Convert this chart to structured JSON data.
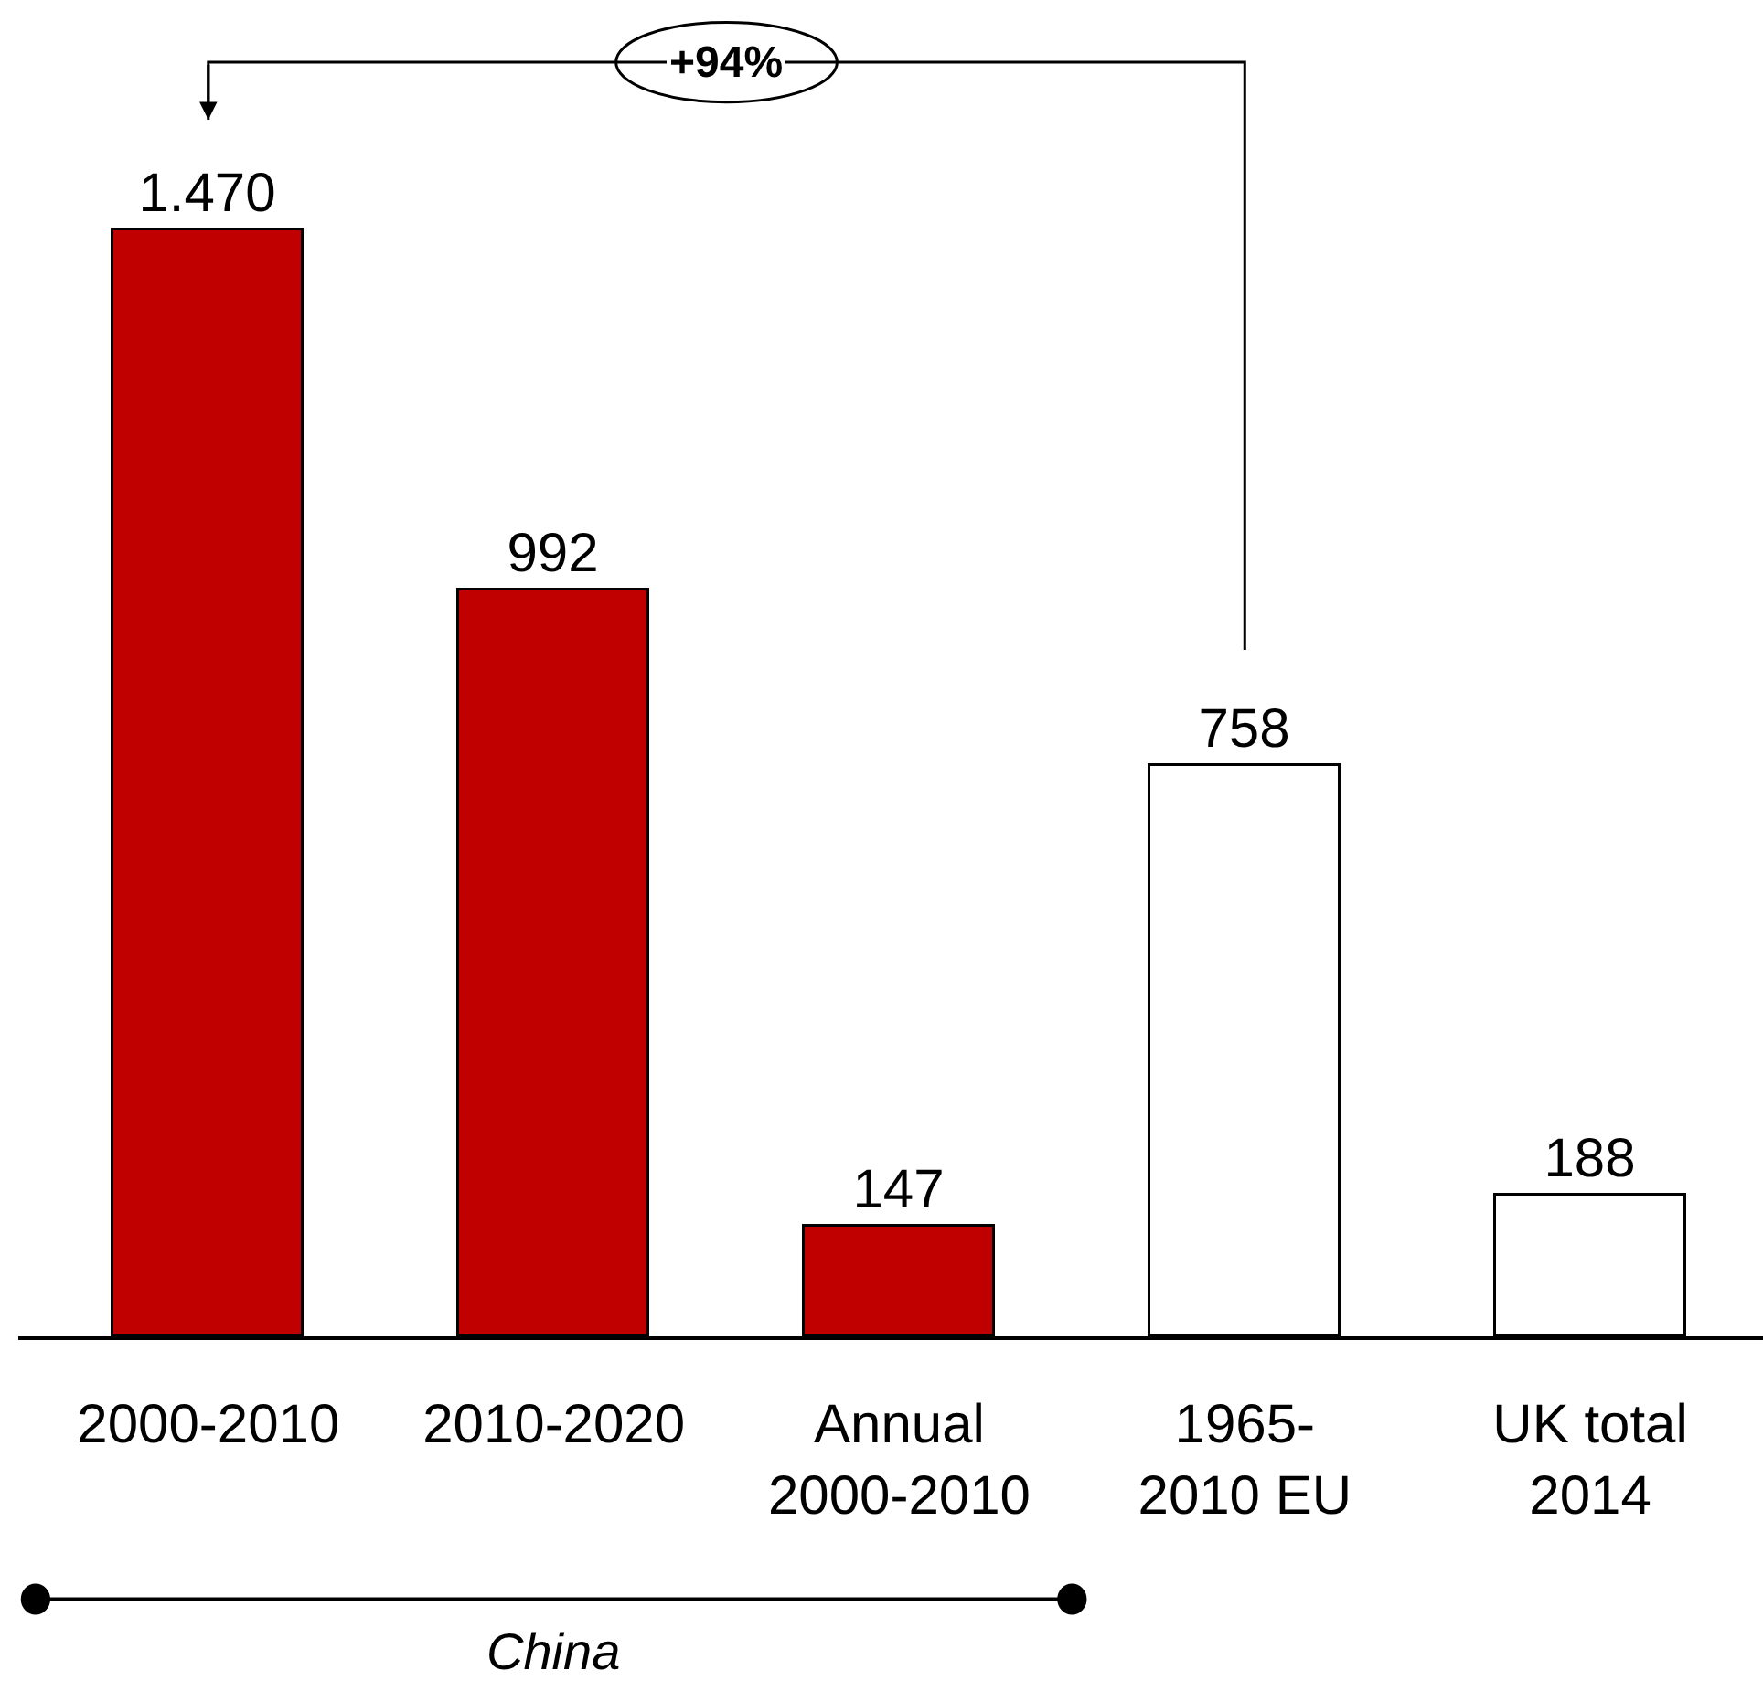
{
  "chart_data": {
    "type": "bar",
    "categories": [
      "2000-2010",
      "2010-2020",
      "Annual\n2000-2010",
      "1965-\n2010 EU",
      "UK total\n2014"
    ],
    "values": [
      1470,
      992,
      147,
      758,
      188
    ],
    "colors": [
      "#c00000",
      "#c00000",
      "#c00000",
      "#ffffff",
      "#ffffff"
    ],
    "value_labels": [
      "1.470",
      "992",
      "147",
      "758",
      "188"
    ],
    "annotations": [
      "+94%",
      "China"
    ]
  }
}
